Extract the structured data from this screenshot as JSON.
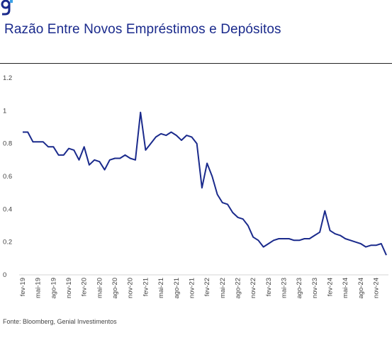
{
  "header": {
    "title": "Razão Entre Novos Empréstimos e Depósitos",
    "logo_icon": "genial-g-logo-icon",
    "brand_color": "#1a2a8c",
    "logo_accent_color": "#3aa0e6"
  },
  "footer": {
    "source": "Fonte: Bloomberg, Genial Investimentos"
  },
  "chart_data": {
    "type": "line",
    "title": "Razão Entre Novos Empréstimos e Depósitos",
    "xlabel": "",
    "ylabel": "",
    "ylim": [
      0,
      1.2
    ],
    "yticks": [
      0,
      0.2,
      0.4,
      0.6,
      0.8,
      1,
      1.2
    ],
    "ytick_labels": [
      "0",
      "0.2",
      "0.4",
      "0.6",
      "0.8",
      "1",
      "1.2"
    ],
    "xtick_labels": [
      "fev-19",
      "mai-19",
      "ago-19",
      "nov-19",
      "fev-20",
      "mai-20",
      "ago-20",
      "nov-20",
      "fev-21",
      "mai-21",
      "ago-21",
      "nov-21",
      "fev-22",
      "mai-22",
      "ago-22",
      "nov-22",
      "fev-23",
      "mai-23",
      "ago-23",
      "nov-23",
      "fev-24",
      "mai-24",
      "ago-24",
      "nov-24"
    ],
    "grid": false,
    "line_color": "#1a2a8c",
    "series": [
      {
        "values": [
          0.87,
          0.87,
          0.81,
          0.81,
          0.81,
          0.78,
          0.78,
          0.73,
          0.73,
          0.77,
          0.76,
          0.7,
          0.78,
          0.67,
          0.7,
          0.69,
          0.64,
          0.7,
          0.71,
          0.71,
          0.73,
          0.71,
          0.7,
          0.99,
          0.76,
          0.8,
          0.84,
          0.86,
          0.85,
          0.87,
          0.85,
          0.82,
          0.85,
          0.84,
          0.8,
          0.53,
          0.68,
          0.6,
          0.49,
          0.44,
          0.43,
          0.38,
          0.35,
          0.34,
          0.3,
          0.23,
          0.21,
          0.17,
          0.19,
          0.21,
          0.22,
          0.22,
          0.22,
          0.21,
          0.21,
          0.22,
          0.22,
          0.24,
          0.26,
          0.39,
          0.27,
          0.25,
          0.24,
          0.22,
          0.21,
          0.2,
          0.19,
          0.17,
          0.18,
          0.18,
          0.19,
          0.12
        ]
      }
    ]
  }
}
